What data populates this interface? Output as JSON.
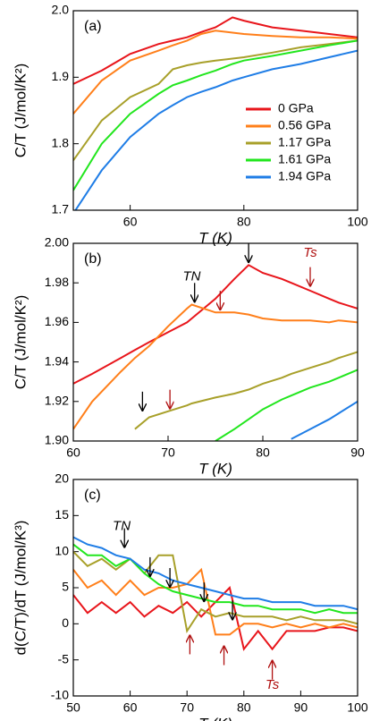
{
  "chart_data": [
    {
      "type": "line",
      "label": "(a)",
      "xlabel": "T (K)",
      "ylabel": "C/T (J/mol/K²)",
      "xlim": [
        50,
        100
      ],
      "ylim": [
        1.7,
        2.0
      ],
      "xticks": [
        60,
        80,
        100
      ],
      "yticks": [
        1.7,
        1.8,
        1.9,
        {
          "value": 2,
          "label": "2.0"
        }
      ],
      "legend": "lower right",
      "x": [
        50,
        55,
        60,
        65,
        67.5,
        70,
        72.5,
        75,
        78,
        80,
        85,
        90,
        95,
        100
      ],
      "series": [
        {
          "name": "0 GPa",
          "color": "#e8151b",
          "values": [
            1.89,
            1.91,
            1.935,
            1.95,
            1.955,
            1.96,
            1.968,
            1.975,
            1.99,
            1.985,
            1.975,
            1.97,
            1.965,
            1.96
          ]
        },
        {
          "name": "0.56 GPa",
          "color": "#ff7f1a",
          "values": [
            1.845,
            1.895,
            1.925,
            1.94,
            1.948,
            1.955,
            1.965,
            1.97,
            1.967,
            1.965,
            1.962,
            1.96,
            1.96,
            1.958
          ]
        },
        {
          "name": "1.17 GPa",
          "color": "#a8a02a",
          "values": [
            1.775,
            1.835,
            1.87,
            1.89,
            1.912,
            1.918,
            1.922,
            1.925,
            1.928,
            1.93,
            1.937,
            1.945,
            1.95,
            1.955
          ]
        },
        {
          "name": "1.61 GPa",
          "color": "#22e61e",
          "values": [
            1.73,
            1.8,
            1.845,
            1.875,
            1.888,
            1.895,
            1.903,
            1.91,
            1.92,
            1.925,
            1.932,
            1.94,
            1.948,
            1.955
          ]
        },
        {
          "name": "1.94 GPa",
          "color": "#1f7de6",
          "values": [
            1.695,
            1.76,
            1.81,
            1.845,
            1.858,
            1.87,
            1.878,
            1.885,
            1.895,
            1.9,
            1.912,
            1.92,
            1.93,
            1.94
          ]
        }
      ]
    },
    {
      "type": "line",
      "label": "(b)",
      "xlabel": "T (K)",
      "ylabel": "C/T (J/mol/K²)",
      "xlim": [
        60,
        90
      ],
      "ylim": [
        1.9,
        2.0
      ],
      "xticks": [
        60,
        70,
        80,
        90
      ],
      "yticks": [
        {
          "value": 1.9,
          "label": "1.90"
        },
        1.92,
        1.94,
        1.96,
        1.98,
        {
          "value": 2,
          "label": "2.00"
        }
      ],
      "x": [
        60,
        62,
        65,
        66.5,
        68,
        70,
        72,
        72.5,
        75,
        77,
        78.5,
        80,
        82,
        83,
        85,
        87,
        88,
        90
      ],
      "series": [
        {
          "color": "#e8151b",
          "values": [
            1.929,
            1.934,
            1.942,
            1.946,
            1.95,
            1.955,
            1.96,
            1.962,
            1.972,
            1.982,
            1.989,
            1.985,
            1.982,
            1.98,
            1.976,
            1.972,
            1.97,
            1.967
          ]
        },
        {
          "color": "#ff7f1a",
          "values": [
            1.906,
            1.92,
            1.935,
            1.942,
            1.948,
            1.958,
            1.967,
            1.969,
            1.965,
            1.965,
            1.964,
            1.962,
            1.961,
            1.961,
            1.961,
            1.96,
            1.961,
            1.96
          ]
        },
        {
          "color": "#a8a02a",
          "values": [
            null,
            null,
            null,
            1.906,
            1.912,
            1.915,
            1.918,
            1.919,
            1.922,
            1.924,
            1.926,
            1.929,
            1.932,
            1.934,
            1.937,
            1.94,
            1.942,
            1.945
          ]
        },
        {
          "color": "#22e61e",
          "values": [
            null,
            null,
            null,
            null,
            null,
            null,
            null,
            null,
            1.9,
            1.906,
            1.911,
            1.916,
            1.921,
            1.923,
            1.927,
            1.93,
            1.932,
            1.936
          ]
        },
        {
          "color": "#1f7de6",
          "values": [
            null,
            null,
            null,
            null,
            null,
            null,
            null,
            null,
            null,
            null,
            null,
            null,
            null,
            1.901,
            1.906,
            1.911,
            1.914,
            1.92
          ]
        }
      ],
      "annotations": [
        {
          "text": "TN",
          "x": 72.5,
          "y": 1.983,
          "color": "#000000"
        },
        {
          "text": "Ts",
          "x": 85,
          "y": 1.995,
          "color": "#b01010"
        }
      ],
      "arrows": [
        {
          "x": 67.3,
          "y": 1.915,
          "color": "#000000",
          "dir": "down"
        },
        {
          "x": 72.8,
          "y": 1.97,
          "color": "#000000",
          "dir": "down"
        },
        {
          "x": 78.5,
          "y": 1.99,
          "color": "#000000",
          "dir": "down"
        },
        {
          "x": 70.2,
          "y": 1.916,
          "color": "#b01010",
          "dir": "down"
        },
        {
          "x": 75.5,
          "y": 1.966,
          "color": "#b01010",
          "dir": "down"
        },
        {
          "x": 85,
          "y": 1.978,
          "color": "#b01010",
          "dir": "down"
        }
      ]
    },
    {
      "type": "line",
      "label": "(c)",
      "xlabel": "T (K)",
      "ylabel": "d(C/T)/dT (J/mol/K³)",
      "xlim": [
        50,
        100
      ],
      "ylim": [
        -10,
        20
      ],
      "xticks": [
        50,
        60,
        70,
        80,
        90,
        100
      ],
      "yticks": [
        -10,
        -5,
        0,
        5,
        10,
        15,
        20
      ],
      "x": [
        50,
        52.5,
        55,
        57.5,
        60,
        62.5,
        65,
        67.5,
        70,
        72.5,
        75,
        77.5,
        80,
        82.5,
        85,
        87.5,
        90,
        92.5,
        95,
        97.5,
        100
      ],
      "series": [
        {
          "color": "#e8151b",
          "values": [
            4,
            1.5,
            3,
            1.5,
            3,
            1,
            2.5,
            1.5,
            3,
            1,
            3,
            5,
            -3.5,
            -1,
            -3.5,
            -1,
            -1,
            -1,
            -0.5,
            -0.5,
            -1
          ]
        },
        {
          "color": "#ff7f1a",
          "values": [
            7.5,
            5,
            6,
            4,
            6,
            4,
            5,
            5,
            5.5,
            7.5,
            -1.5,
            -1.5,
            0,
            0,
            -0.5,
            0,
            -0.5,
            0,
            -0.5,
            0,
            -0.5
          ]
        },
        {
          "color": "#a8a02a",
          "values": [
            10,
            8,
            9,
            7.5,
            9,
            7,
            9.5,
            9.5,
            -1,
            2,
            1,
            1.5,
            1,
            1,
            1,
            0.5,
            1,
            0.5,
            0.5,
            0.5,
            0
          ]
        },
        {
          "color": "#22e61e",
          "values": [
            11,
            9.5,
            9.5,
            8,
            9,
            7,
            5.5,
            4.5,
            4,
            3.5,
            3,
            3,
            2.5,
            2.5,
            2,
            2,
            2,
            1.5,
            2,
            1.5,
            1.5
          ]
        },
        {
          "color": "#1f7de6",
          "values": [
            12,
            11,
            10.5,
            9.5,
            9,
            7.5,
            7,
            6,
            5.5,
            5,
            4.5,
            4,
            3.5,
            3.5,
            3,
            3,
            3,
            2.5,
            2.5,
            2.5,
            2
          ]
        }
      ],
      "annotations": [
        {
          "text": "TN",
          "x": 58.5,
          "y": 13.5,
          "color": "#000000"
        },
        {
          "text": "Ts",
          "x": 85,
          "y": -8.5,
          "color": "#b01010"
        }
      ],
      "arrows": [
        {
          "x": 59,
          "y": 10.5,
          "color": "#000000",
          "dir": "down"
        },
        {
          "x": 63.5,
          "y": 6.5,
          "color": "#000000",
          "dir": "down"
        },
        {
          "x": 67,
          "y": 5,
          "color": "#000000",
          "dir": "down"
        },
        {
          "x": 73,
          "y": 3,
          "color": "#000000",
          "dir": "down"
        },
        {
          "x": 78,
          "y": 0.5,
          "color": "#000000",
          "dir": "down"
        },
        {
          "x": 70.5,
          "y": -1.5,
          "color": "#b01010",
          "dir": "up"
        },
        {
          "x": 76.5,
          "y": -3,
          "color": "#b01010",
          "dir": "up"
        },
        {
          "x": 85,
          "y": -5,
          "color": "#b01010",
          "dir": "up"
        }
      ]
    }
  ]
}
